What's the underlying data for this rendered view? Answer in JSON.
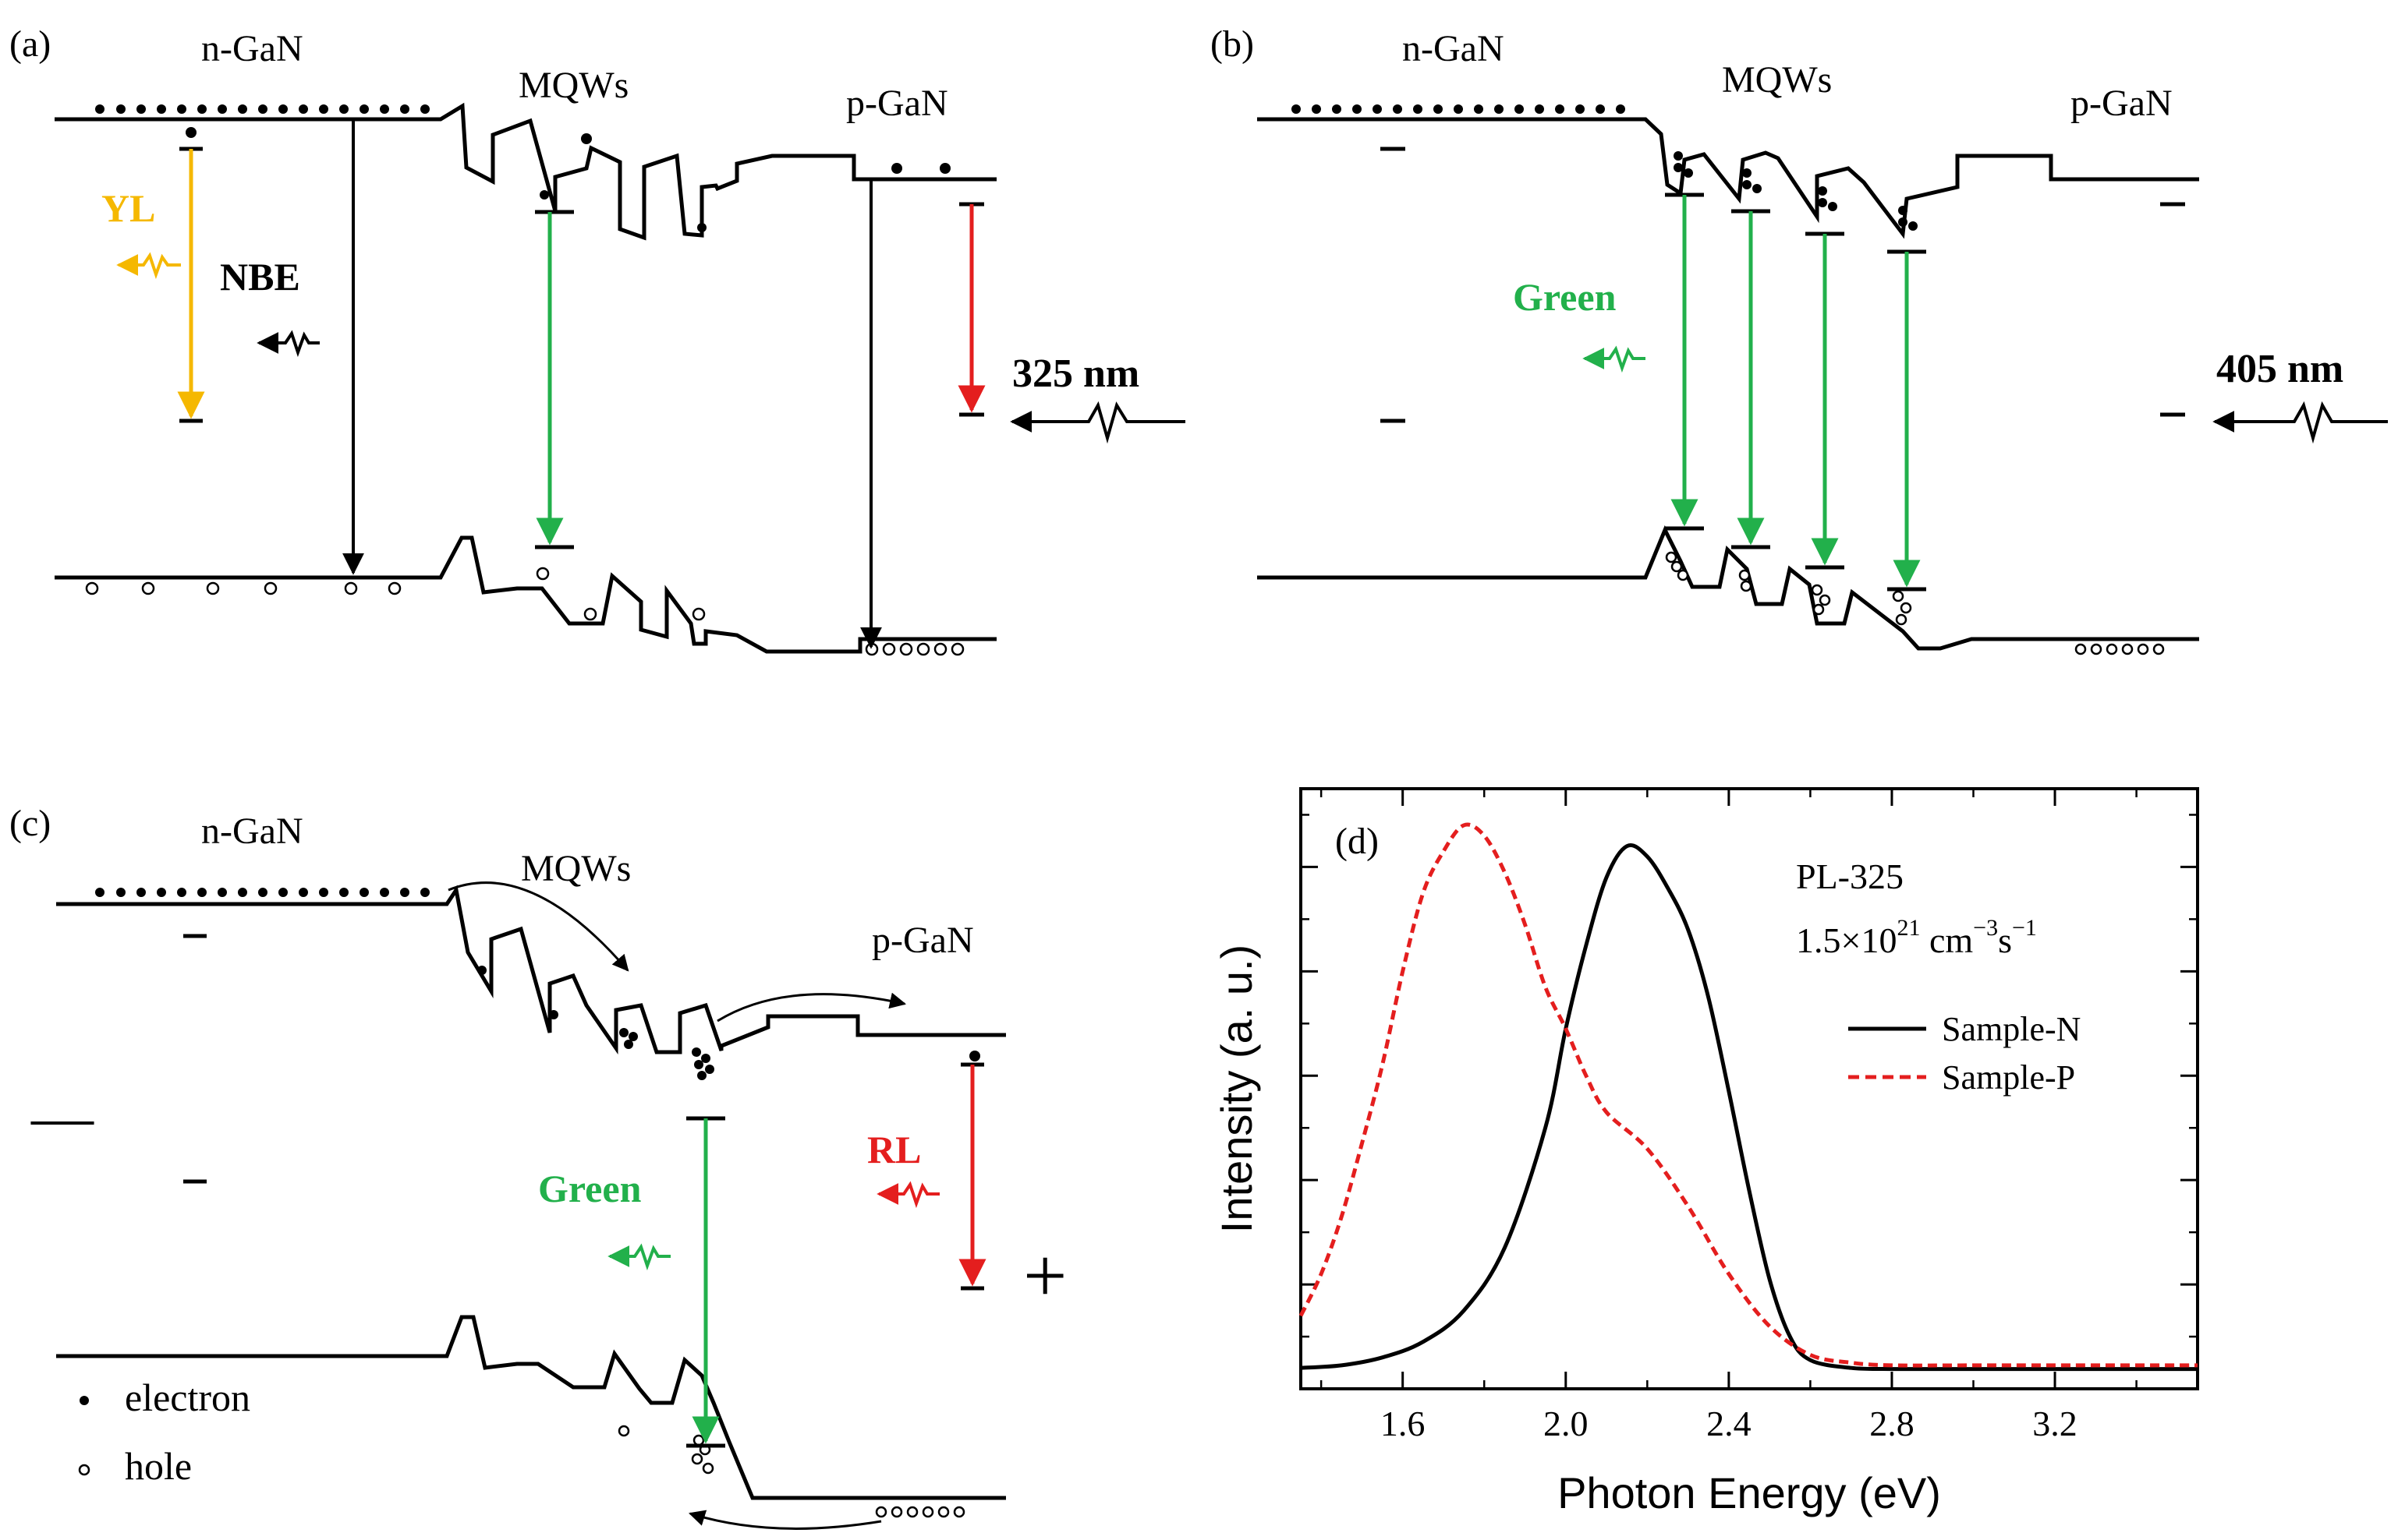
{
  "colors": {
    "black": "#000000",
    "green": "#22b04b",
    "yellow": "#f5b800",
    "red": "#e41e1e"
  },
  "panel_a": {
    "label": "(a)",
    "n_region": "n-GaN",
    "mqw_region": "MQWs",
    "p_region": "p-GaN",
    "yl": "YL",
    "nbe": "NBE",
    "excitation": "325 nm"
  },
  "panel_b": {
    "label": "(b)",
    "n_region": "n-GaN",
    "mqw_region": "MQWs",
    "p_region": "p-GaN",
    "green": "Green",
    "excitation": "405 nm"
  },
  "panel_c": {
    "label": "(c)",
    "n_region": "n-GaN",
    "mqw_region": "MQWs",
    "p_region": "p-GaN",
    "green": "Green",
    "rl": "RL",
    "minus": "—",
    "plus": "+",
    "legend_electron": "electron",
    "legend_hole": "hole"
  },
  "panel_d": {
    "label": "(d)",
    "annotation_line1": "PL-325",
    "annotation_rate_mantissa": "1.5×10",
    "annotation_rate_exp": "21",
    "annotation_unit_cm": " cm",
    "annotation_unit_cm_exp": "−3",
    "annotation_unit_s": "s",
    "annotation_unit_s_exp": "−1",
    "chart_data": {
      "type": "line",
      "title": "",
      "xlabel": "Photon Energy (eV)",
      "ylabel": "Intensity (a. u.)",
      "xlim": [
        1.35,
        3.55
      ],
      "ylim": [
        0,
        1.15
      ],
      "x_ticks": [
        1.6,
        2.0,
        2.4,
        2.8,
        3.2
      ],
      "x_tick_labels": [
        "1.6",
        "2.0",
        "2.4",
        "2.8",
        "3.2"
      ],
      "legend_position": "right",
      "series": [
        {
          "name": "Sample-N",
          "style": "solid",
          "color": "#000000",
          "x": [
            1.35,
            1.45,
            1.55,
            1.65,
            1.75,
            1.85,
            1.95,
            2.0,
            2.05,
            2.1,
            2.15,
            2.2,
            2.25,
            2.3,
            2.35,
            2.4,
            2.45,
            2.5,
            2.55,
            2.6,
            2.7,
            2.8,
            3.0,
            3.2,
            3.55
          ],
          "y": [
            0.04,
            0.045,
            0.06,
            0.09,
            0.15,
            0.27,
            0.5,
            0.69,
            0.85,
            0.98,
            1.04,
            1.02,
            0.96,
            0.88,
            0.75,
            0.57,
            0.38,
            0.21,
            0.1,
            0.055,
            0.04,
            0.038,
            0.038,
            0.038,
            0.038
          ]
        },
        {
          "name": "Sample-P",
          "style": "dashed",
          "color": "#e41e1e",
          "x": [
            1.35,
            1.4,
            1.45,
            1.5,
            1.55,
            1.6,
            1.65,
            1.7,
            1.75,
            1.8,
            1.85,
            1.9,
            1.95,
            2.0,
            2.05,
            2.1,
            2.2,
            2.3,
            2.4,
            2.5,
            2.6,
            2.7,
            2.8,
            3.0,
            3.2,
            3.55
          ],
          "y": [
            0.14,
            0.22,
            0.33,
            0.47,
            0.62,
            0.8,
            0.95,
            1.03,
            1.08,
            1.06,
            0.99,
            0.89,
            0.77,
            0.69,
            0.6,
            0.53,
            0.46,
            0.35,
            0.22,
            0.12,
            0.065,
            0.05,
            0.045,
            0.045,
            0.045,
            0.045
          ]
        }
      ]
    }
  }
}
